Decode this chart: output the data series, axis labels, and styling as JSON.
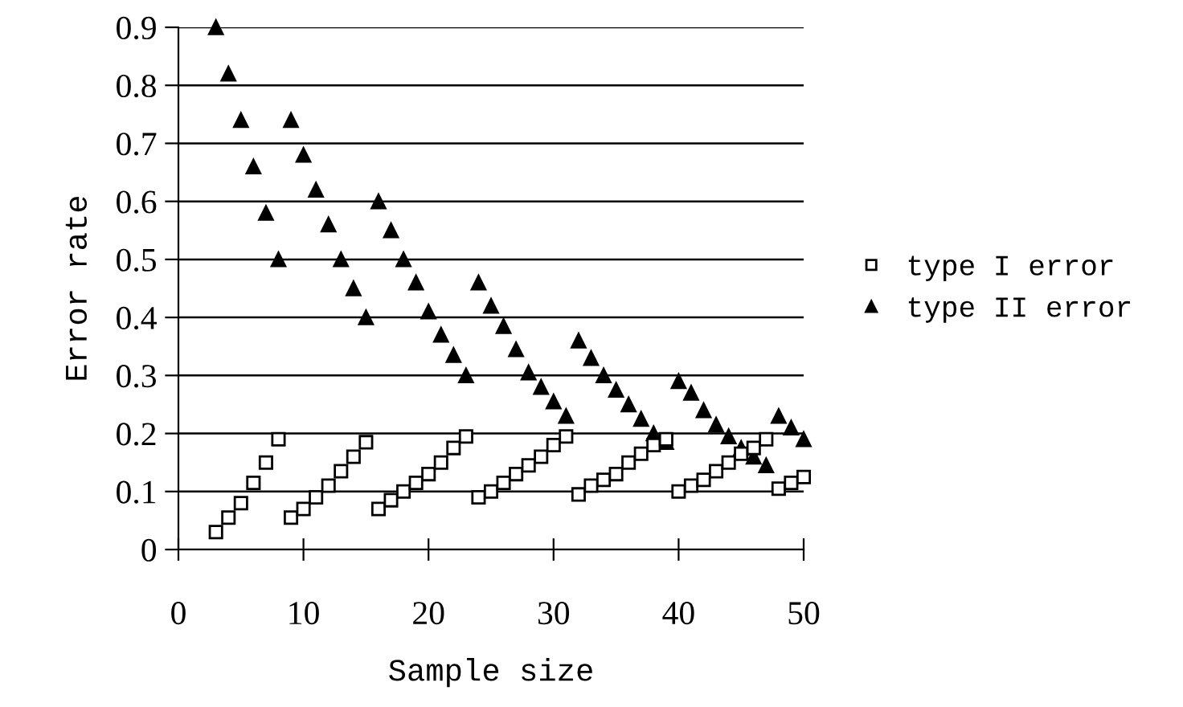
{
  "chart_data": {
    "type": "scatter",
    "xlabel": "Sample size",
    "ylabel": "Error rate",
    "x": [
      3,
      4,
      5,
      6,
      7,
      8,
      9,
      10,
      11,
      12,
      13,
      14,
      15,
      16,
      17,
      18,
      19,
      20,
      21,
      22,
      23,
      24,
      25,
      26,
      27,
      28,
      29,
      30,
      31,
      32,
      33,
      34,
      35,
      36,
      37,
      38,
      39,
      40,
      41,
      42,
      43,
      44,
      45,
      46,
      47,
      48,
      49,
      50
    ],
    "series": [
      {
        "name": "type I error",
        "color": "#000000",
        "marker": "square",
        "values": [
          0.03,
          0.055,
          0.08,
          0.115,
          0.15,
          0.19,
          0.055,
          0.07,
          0.09,
          0.11,
          0.135,
          0.16,
          0.185,
          0.07,
          0.085,
          0.1,
          0.115,
          0.13,
          0.15,
          0.175,
          0.195,
          0.09,
          0.1,
          0.115,
          0.13,
          0.145,
          0.16,
          0.18,
          0.195,
          0.095,
          0.11,
          0.12,
          0.13,
          0.15,
          0.165,
          0.18,
          0.19,
          0.1,
          0.11,
          0.12,
          0.135,
          0.15,
          0.165,
          0.175,
          0.19,
          0.105,
          0.115,
          0.125
        ]
      },
      {
        "name": "type II error",
        "color": "#000000",
        "marker": "triangle",
        "values": [
          0.9,
          0.82,
          0.74,
          0.66,
          0.58,
          0.5,
          0.74,
          0.68,
          0.62,
          0.56,
          0.5,
          0.45,
          0.4,
          0.6,
          0.55,
          0.5,
          0.46,
          0.41,
          0.37,
          0.335,
          0.3,
          0.46,
          0.42,
          0.385,
          0.345,
          0.305,
          0.28,
          0.255,
          0.23,
          0.36,
          0.33,
          0.3,
          0.275,
          0.25,
          0.225,
          0.2,
          0.185,
          0.29,
          0.27,
          0.24,
          0.215,
          0.195,
          0.175,
          0.16,
          0.145,
          0.23,
          0.21,
          0.19
        ]
      }
    ],
    "xlim": [
      0,
      50
    ],
    "xticks": [
      0,
      10,
      20,
      30,
      40,
      50
    ],
    "ylim": [
      0,
      0.9
    ],
    "yticks": [
      0,
      0.1,
      0.2,
      0.3,
      0.4,
      0.5,
      0.6,
      0.7,
      0.8,
      0.9
    ],
    "grid": "y",
    "legend": "right"
  }
}
